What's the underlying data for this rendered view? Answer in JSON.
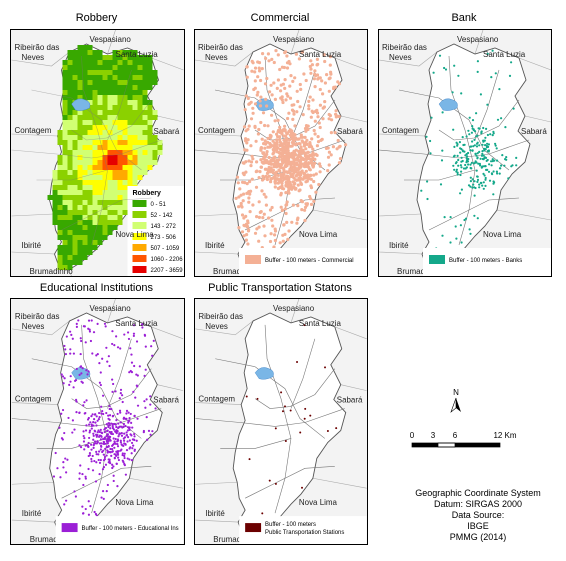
{
  "panels": [
    {
      "title": "Robbery",
      "key": "robbery"
    },
    {
      "title": "Commercial",
      "key": "commercial"
    },
    {
      "title": "Bank",
      "key": "bank"
    },
    {
      "title": "Educational Institutions",
      "key": "education"
    },
    {
      "title": "Public Transportation Statons",
      "key": "transport"
    }
  ],
  "place_labels": {
    "vespasiano": "Vespasiano",
    "ribeirao_1": "Ribeirão das",
    "ribeirao_2": "Neves",
    "santa_luzia": "Santa Luzia",
    "contagem": "Contagem",
    "sabara": "Sabará",
    "nova_lima": "Nova Lima",
    "ibirite": "Ibirité",
    "brumadinho": "Brumadinho"
  },
  "robbery_legend": {
    "title": "Robbery",
    "classes": [
      {
        "label": "0 - 51",
        "color": "#38a800"
      },
      {
        "label": "52 - 142",
        "color": "#8bd100"
      },
      {
        "label": "143 - 272",
        "color": "#d1ff73"
      },
      {
        "label": "273 - 506",
        "color": "#ffff00"
      },
      {
        "label": "507 - 1059",
        "color": "#ffaa00"
      },
      {
        "label": "1060 - 2206",
        "color": "#ff5500"
      },
      {
        "label": "2207 - 3659",
        "color": "#e60000"
      }
    ]
  },
  "legends": {
    "commercial": {
      "label": "Buffer - 100 meters - Commercial",
      "color": "#f4b095"
    },
    "bank": {
      "label": "Buffer - 100 meters - Banks",
      "color": "#14a88a"
    },
    "education": {
      "label": "Buffer - 100 meters - Educational Ins",
      "color": "#9b1fd6"
    },
    "transport": {
      "label_1": "Buffer - 100 meters",
      "label_2": "Public Transportation Stations",
      "color": "#6b0000"
    }
  },
  "colors": {
    "water": "#7ab6e6",
    "road": "#777777",
    "boundary": "#555555",
    "outside": "#f3f3f3"
  },
  "north_arrow": {
    "label": "N"
  },
  "scale_bar": {
    "ticks": [
      "0",
      "3",
      "6",
      "12 Km"
    ]
  },
  "info": {
    "line1": "Geographic Coordinate System",
    "line2": "Datum: SIRGAS 2000",
    "line3": "Data Source:",
    "line4": "IBGE",
    "line5": "PMMG (2014)"
  }
}
